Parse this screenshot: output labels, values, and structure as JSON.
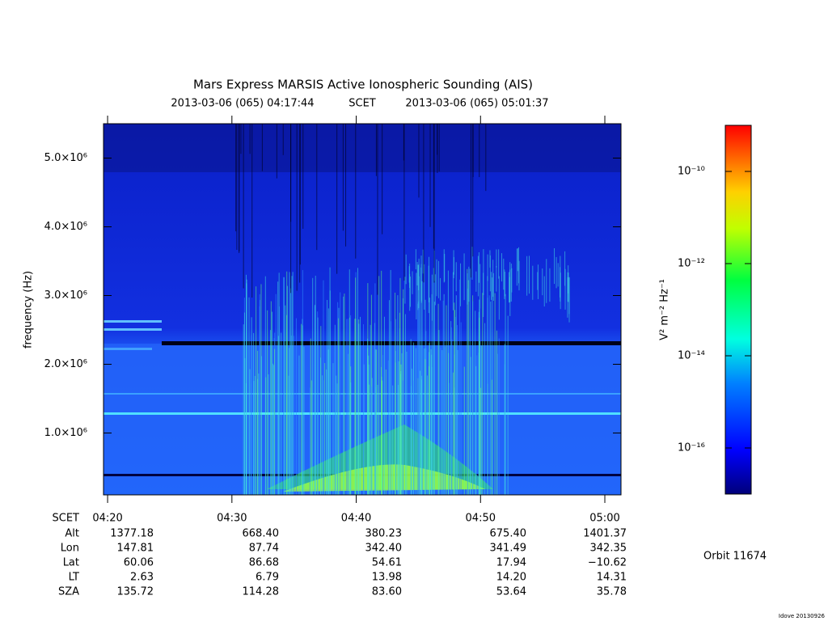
{
  "chart_data": {
    "type": "spectrogram",
    "title": "Mars Express MARSIS Active Ionospheric Sounding (AIS)",
    "start_time": "2013-03-06 (065) 04:17:44",
    "time_label": "SCET",
    "end_time": "2013-03-06 (065) 05:01:37",
    "y_label": "frequency (Hz)",
    "ylim": [
      100000,
      5500000
    ],
    "yticks": [
      {
        "value": 1000000,
        "label": "1.0×10⁶"
      },
      {
        "value": 2000000,
        "label": "2.0×10⁶"
      },
      {
        "value": 3000000,
        "label": "3.0×10⁶"
      },
      {
        "value": 4000000,
        "label": "4.0×10⁶"
      },
      {
        "value": 5000000,
        "label": "5.0×10⁶"
      }
    ],
    "x_label": "SCET",
    "xlim": [
      19.67,
      61.3
    ],
    "xticks": [
      {
        "value": 20,
        "label": "04:20"
      },
      {
        "value": 30,
        "label": "04:30"
      },
      {
        "value": 40,
        "label": "04:40"
      },
      {
        "value": 50,
        "label": "04:50"
      },
      {
        "value": 60,
        "label": "05:00"
      }
    ],
    "ephemeris": [
      {
        "name": "Alt",
        "values": [
          "1377.18",
          "668.40",
          "380.23",
          "675.40",
          "1401.37"
        ]
      },
      {
        "name": "Lon",
        "values": [
          "147.81",
          "87.74",
          "342.40",
          "341.49",
          "342.35"
        ]
      },
      {
        "name": "Lat",
        "values": [
          "60.06",
          "86.68",
          "54.61",
          "17.94",
          "−10.62"
        ]
      },
      {
        "name": "LT",
        "values": [
          "2.63",
          "6.79",
          "13.98",
          "14.20",
          "14.31"
        ]
      },
      {
        "name": "SZA",
        "values": [
          "135.72",
          "114.28",
          "83.60",
          "53.64",
          "35.78"
        ]
      }
    ],
    "colorbar_label": "V² m⁻² Hz⁻¹",
    "colorbar_log": true,
    "clim": [
      1e-17,
      1e-09
    ],
    "colorbar_ticks": [
      {
        "value": 1e-10,
        "label": "10⁻¹⁰"
      },
      {
        "value": 1e-12,
        "label": "10⁻¹²"
      },
      {
        "value": 1e-14,
        "label": "10⁻¹⁴"
      },
      {
        "value": 1e-16,
        "label": "10⁻¹⁶"
      }
    ],
    "orbit": "Orbit 11674",
    "footer": "Idove 20130926"
  }
}
